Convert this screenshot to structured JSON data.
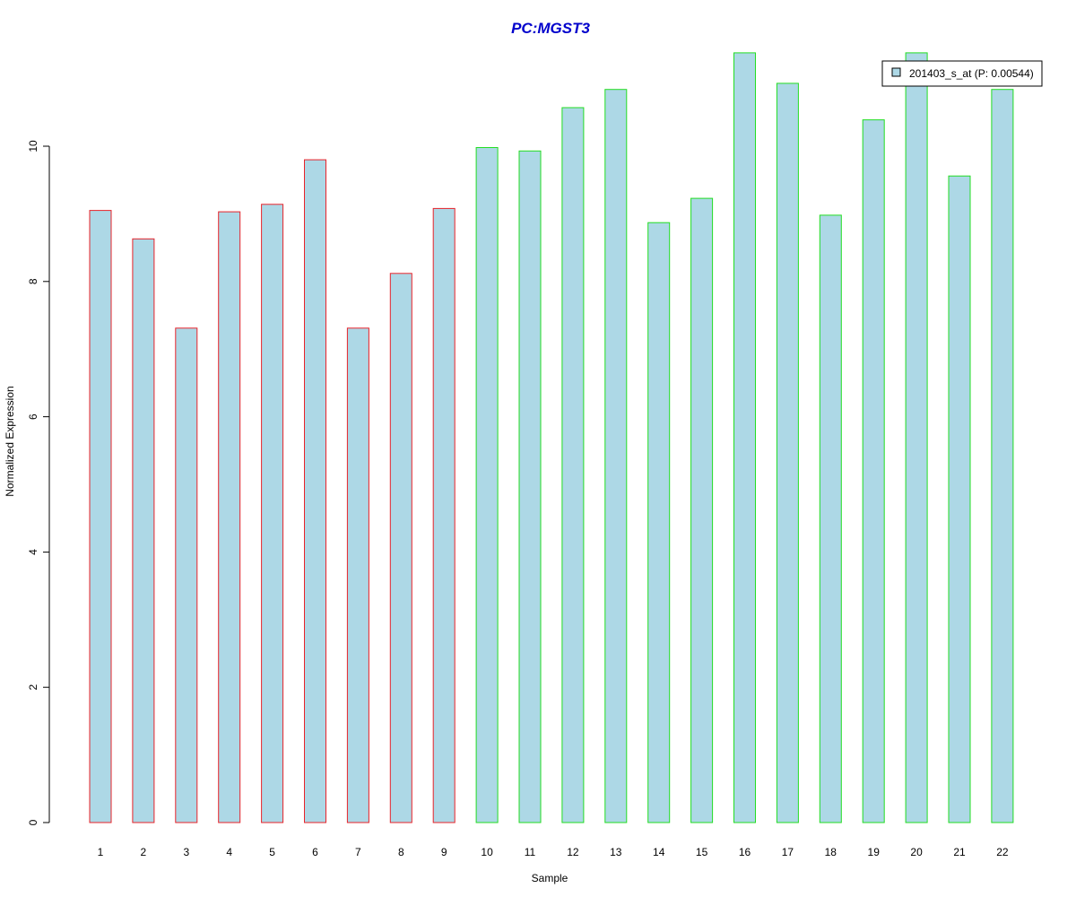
{
  "chart_data": {
    "type": "bar",
    "title": "PC:MGST3",
    "xlabel": "Sample",
    "ylabel": "Normalized Expression",
    "categories": [
      "1",
      "2",
      "3",
      "4",
      "5",
      "6",
      "7",
      "8",
      "9",
      "10",
      "11",
      "12",
      "13",
      "14",
      "15",
      "16",
      "17",
      "18",
      "19",
      "20",
      "21",
      "22"
    ],
    "series": [
      {
        "name": "201403_s_at (P: 0.00544)",
        "values": [
          9.05,
          8.63,
          7.31,
          9.03,
          9.14,
          9.8,
          7.31,
          8.12,
          9.08,
          9.98,
          9.93,
          10.57,
          10.84,
          8.87,
          9.23,
          11.38,
          10.93,
          8.98,
          10.39,
          11.38,
          9.56,
          10.84
        ]
      }
    ],
    "groups": [
      {
        "samples": [
          "1",
          "2",
          "3",
          "4",
          "5",
          "6",
          "7",
          "8",
          "9"
        ],
        "border_color": "#e8232a"
      },
      {
        "samples": [
          "10",
          "11",
          "12",
          "13",
          "14",
          "15",
          "16",
          "17",
          "18",
          "19",
          "20",
          "21",
          "22"
        ],
        "border_color": "#22dd22"
      }
    ],
    "yticks": [
      "0",
      "2",
      "4",
      "6",
      "8",
      "10"
    ],
    "ylim": [
      0,
      11.4
    ],
    "grid": false,
    "legend_position": "top-right",
    "colors": {
      "bar_fill": "#add8e6",
      "title": "#0000cc",
      "axis": "#000000"
    }
  }
}
